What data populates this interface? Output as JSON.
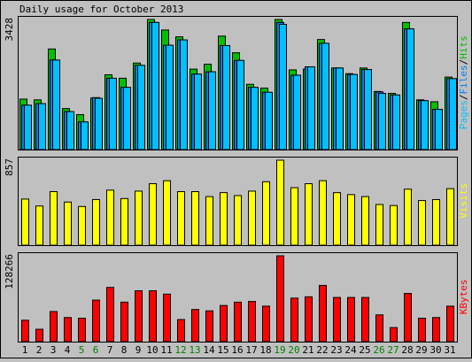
{
  "chart_data": {
    "type": "bar",
    "title": "Daily usage for October 2013",
    "categories": [
      "1",
      "2",
      "3",
      "4",
      "5",
      "6",
      "7",
      "8",
      "9",
      "10",
      "11",
      "12",
      "13",
      "14",
      "15",
      "16",
      "17",
      "18",
      "19",
      "20",
      "21",
      "22",
      "23",
      "24",
      "25",
      "26",
      "27",
      "28",
      "29",
      "30",
      "31"
    ],
    "weekend_days": [
      "5",
      "6",
      "12",
      "13",
      "19",
      "20",
      "26",
      "27"
    ],
    "panels": [
      {
        "name": "hits",
        "side_labels": [
          "Pages",
          "Files",
          "Hits"
        ],
        "side_colors": [
          "#00c0ff",
          "#0080ff",
          "#00c000"
        ],
        "max_label": "3428",
        "ylim": [
          0,
          3428
        ],
        "series": [
          {
            "name": "Hits",
            "color": "#00c000",
            "values": [
              1330,
              1310,
              2650,
              1080,
              920,
              1360,
              1970,
              1880,
              2280,
              3428,
              3150,
              2970,
              2120,
              2250,
              2990,
              2550,
              1720,
              1620,
              3428,
              2100,
              2120,
              2900,
              2150,
              2000,
              2150,
              1530,
              1480,
              3350,
              1310,
              1260,
              1910
            ]
          },
          {
            "name": "Files",
            "color": "#0080ff",
            "values": [
              1170,
              1210,
              2360,
              1000,
              730,
              1370,
              1880,
              1640,
              2220,
              3350,
              2750,
              2890,
              1990,
              2050,
              2740,
              2350,
              1640,
              1510,
              3350,
              1960,
              2180,
              2800,
              2150,
              1980,
              2110,
              1520,
              1440,
              3180,
              1290,
              1060,
              1870
            ]
          },
          {
            "name": "Pages",
            "color": "#00c0ff",
            "values": [
              1170,
              1210,
              2360,
              1000,
              730,
              1350,
              1880,
              1640,
              2220,
              3350,
              2750,
              2890,
              1990,
              2050,
              2740,
              2350,
              1640,
              1510,
              3300,
              1960,
              2180,
              2800,
              2150,
              1980,
              2110,
              1480,
              1440,
              3180,
              1290,
              1060,
              1870
            ]
          }
        ]
      },
      {
        "name": "visits",
        "side_labels": [
          "Visits"
        ],
        "side_colors": [
          "#ffff00"
        ],
        "max_label": "857",
        "ylim": [
          0,
          857
        ],
        "series": [
          {
            "name": "Visits",
            "color": "#ffff00",
            "values": [
              465,
              395,
              540,
              435,
              390,
              460,
              555,
              470,
              545,
              620,
              650,
              540,
              540,
              490,
              530,
              500,
              545,
              640,
              857,
              580,
              620,
              650,
              530,
              510,
              490,
              410,
              400,
              565,
              450,
              460,
              570
            ]
          }
        ]
      },
      {
        "name": "kbytes",
        "side_labels": [
          "KBytes"
        ],
        "side_colors": [
          "#ff0000"
        ],
        "max_label": "128266",
        "ylim": [
          0,
          128266
        ],
        "series": [
          {
            "name": "KBytes",
            "color": "#ff0000",
            "values": [
              32000,
              18500,
              45000,
              36000,
              35000,
              62000,
              81000,
              59000,
              76000,
              76000,
              71000,
              33000,
              48000,
              46000,
              54000,
              59000,
              60000,
              53000,
              128266,
              65000,
              67000,
              84000,
              66000,
              66000,
              66000,
              40000,
              21000,
              72000,
              35000,
              36000,
              53000
            ]
          }
        ]
      }
    ]
  }
}
